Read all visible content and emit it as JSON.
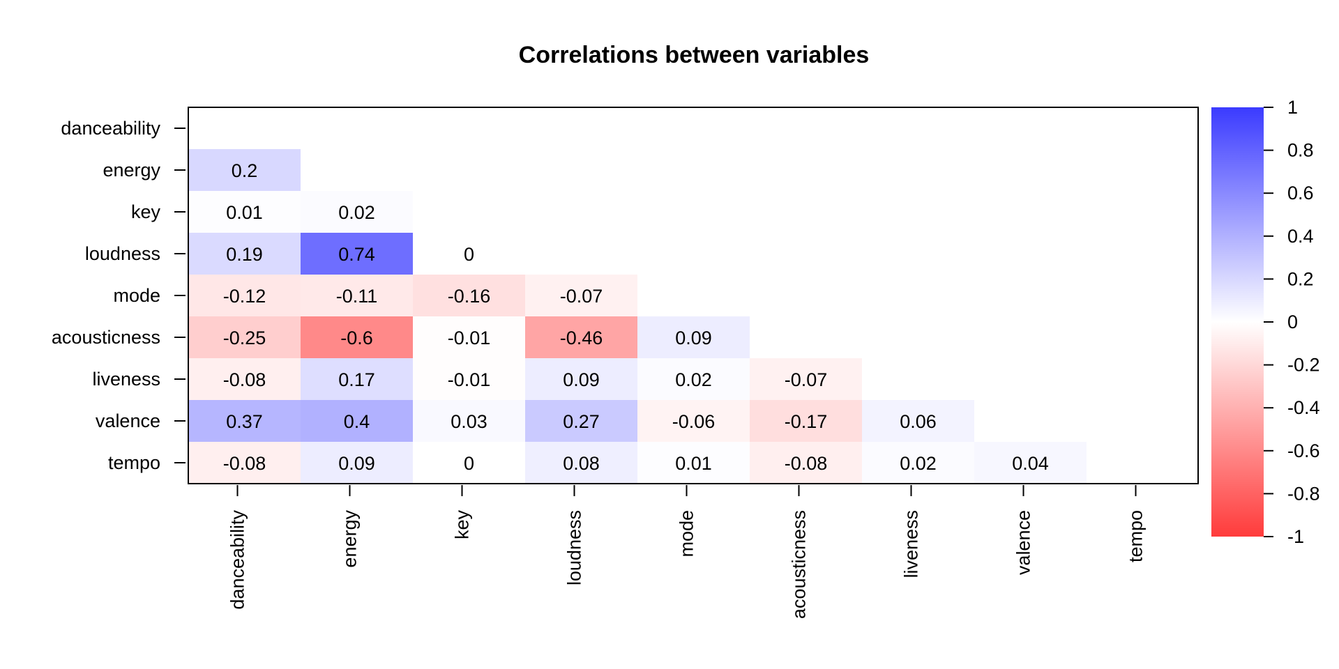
{
  "chart_data": {
    "type": "heatmap",
    "title": "Correlations between variables",
    "variables": [
      "danceability",
      "energy",
      "key",
      "loudness",
      "mode",
      "acousticness",
      "liveness",
      "valence",
      "tempo"
    ],
    "lower_triangle": [
      [],
      [
        0.2
      ],
      [
        0.01,
        0.02
      ],
      [
        0.19,
        0.74,
        0
      ],
      [
        -0.12,
        -0.11,
        -0.16,
        -0.07
      ],
      [
        -0.25,
        -0.6,
        -0.01,
        -0.46,
        0.09
      ],
      [
        -0.08,
        0.17,
        -0.01,
        0.09,
        0.02,
        -0.07
      ],
      [
        0.37,
        0.4,
        0.03,
        0.27,
        -0.06,
        -0.17,
        0.06
      ],
      [
        -0.08,
        0.09,
        0,
        0.08,
        0.01,
        -0.08,
        0.02,
        0.04
      ]
    ],
    "value_labels": [
      [],
      [
        "0.2"
      ],
      [
        "0.01",
        "0.02"
      ],
      [
        "0.19",
        "0.74",
        "0"
      ],
      [
        "-0.12",
        "-0.11",
        "-0.16",
        "-0.07"
      ],
      [
        "-0.25",
        "-0.6",
        "-0.01",
        "-0.46",
        "0.09"
      ],
      [
        "-0.08",
        "0.17",
        "-0.01",
        "0.09",
        "0.02",
        "-0.07"
      ],
      [
        "0.37",
        "0.4",
        "0.03",
        "0.27",
        "-0.06",
        "-0.17",
        "0.06"
      ],
      [
        "-0.08",
        "0.09",
        "0",
        "0.08",
        "0.01",
        "-0.08",
        "0.02",
        "0.04"
      ]
    ],
    "colorbar": {
      "range": [
        -1,
        1
      ],
      "ticks": [
        1,
        0.8,
        0.6,
        0.4,
        0.2,
        0,
        -0.2,
        -0.4,
        -0.6,
        -0.8,
        -1
      ],
      "tick_labels": [
        "1",
        "0.8",
        "0.6",
        "0.4",
        "0.2",
        "0",
        "-0.2",
        "-0.4",
        "-0.6",
        "-0.8",
        "-1"
      ],
      "high_color": "#3b3bff",
      "mid_color": "#ffffff",
      "low_color": "#ff3b3b"
    },
    "legend": "right",
    "grid": false
  }
}
